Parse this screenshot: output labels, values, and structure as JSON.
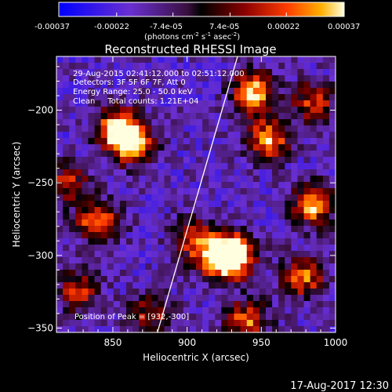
{
  "chart_data": {
    "type": "heatmap",
    "title": "Reconstructed RHESSI Image",
    "xlabel": "Heliocentric X (arcsec)",
    "ylabel": "Heliocentric Y (arcsec)",
    "xlim": [
      812,
      1000
    ],
    "ylim": [
      -353,
      -163
    ],
    "xticks": [
      850,
      900,
      950,
      1000
    ],
    "yticks": [
      -200,
      -250,
      -300,
      -350
    ],
    "colorbar": {
      "min": -0.00037,
      "max": 0.00037,
      "ticks": [
        "-0.00037",
        "-0.00022",
        "-7.4e-05",
        "7.4e-05",
        "0.00022",
        "0.00037"
      ],
      "units": "(photons cm",
      "units_sup1": "-2",
      "units_mid": " s",
      "units_sup2": "-1",
      "units_end": " asec",
      "units_sup3": "-2",
      "units_close": ")"
    },
    "annotations": {
      "time": "29-Aug-2015 02:41:12.000 to 02:51:12.000",
      "detectors": "Detectors: 3F 5F 6F 7F, Att 0",
      "energy": "Energy Range: 25.0 - 50.0 keV",
      "clean": "Clean     Total counts: 1.21E+04",
      "peak": "Position of Peak = [932,-300]"
    },
    "peak": [
      932,
      -300
    ],
    "bright_sources": [
      {
        "x": 862,
        "y": -222,
        "level": 1.0
      },
      {
        "x": 853,
        "y": -212,
        "level": 0.8
      },
      {
        "x": 840,
        "y": -277,
        "level": 0.8
      },
      {
        "x": 905,
        "y": -288,
        "level": 0.7
      },
      {
        "x": 932,
        "y": -300,
        "level": 1.0
      },
      {
        "x": 922,
        "y": -302,
        "level": 0.85
      },
      {
        "x": 945,
        "y": -188,
        "level": 0.9
      },
      {
        "x": 955,
        "y": -220,
        "level": 0.8
      },
      {
        "x": 985,
        "y": -265,
        "level": 0.85
      },
      {
        "x": 978,
        "y": -315,
        "level": 0.7
      },
      {
        "x": 940,
        "y": -345,
        "level": 0.7
      },
      {
        "x": 985,
        "y": -195,
        "level": 0.6
      },
      {
        "x": 875,
        "y": -340,
        "level": 0.5
      },
      {
        "x": 827,
        "y": -325,
        "level": 0.6
      },
      {
        "x": 820,
        "y": -250,
        "level": 0.55
      }
    ],
    "limb_line": [
      [
        880,
        -353
      ],
      [
        934,
        -163
      ]
    ]
  },
  "footer": {
    "timestamp": "17-Aug-2017 12:30"
  }
}
